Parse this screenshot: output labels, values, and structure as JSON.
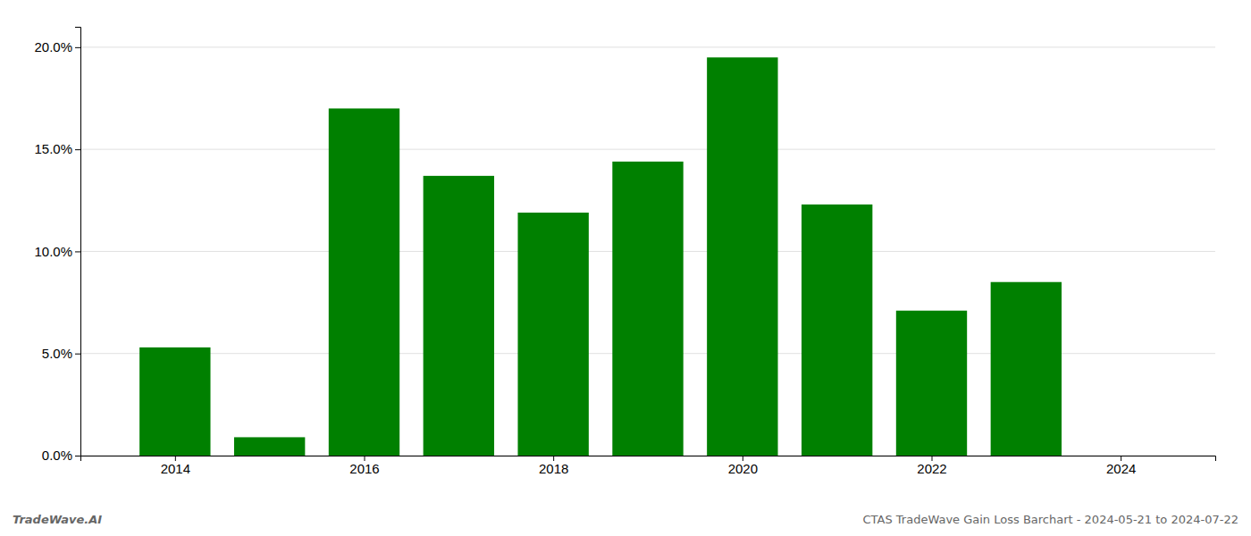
{
  "chart_data": {
    "type": "bar",
    "x": [
      2014,
      2015,
      2016,
      2017,
      2018,
      2019,
      2020,
      2021,
      2022,
      2023
    ],
    "values": [
      0.053,
      0.009,
      0.17,
      0.137,
      0.119,
      0.144,
      0.195,
      0.123,
      0.071,
      0.085
    ],
    "color": "#008000",
    "xlim": [
      2013.0,
      2025.0
    ],
    "xticks": [
      2014,
      2016,
      2018,
      2020,
      2022,
      2024
    ],
    "ylim": [
      0,
      0.21
    ],
    "yticks": [
      {
        "value": 0.0,
        "label": "0.0%"
      },
      {
        "value": 0.05,
        "label": "5.0%"
      },
      {
        "value": 0.1,
        "label": "10.0%"
      },
      {
        "value": 0.15,
        "label": "15.0%"
      },
      {
        "value": 0.2,
        "label": "20.0%"
      }
    ],
    "grid": true,
    "annotations": [
      "TradeWave.AI",
      "CTAS TradeWave Gain Loss Barchart - 2024-05-21 to 2024-07-22"
    ]
  }
}
